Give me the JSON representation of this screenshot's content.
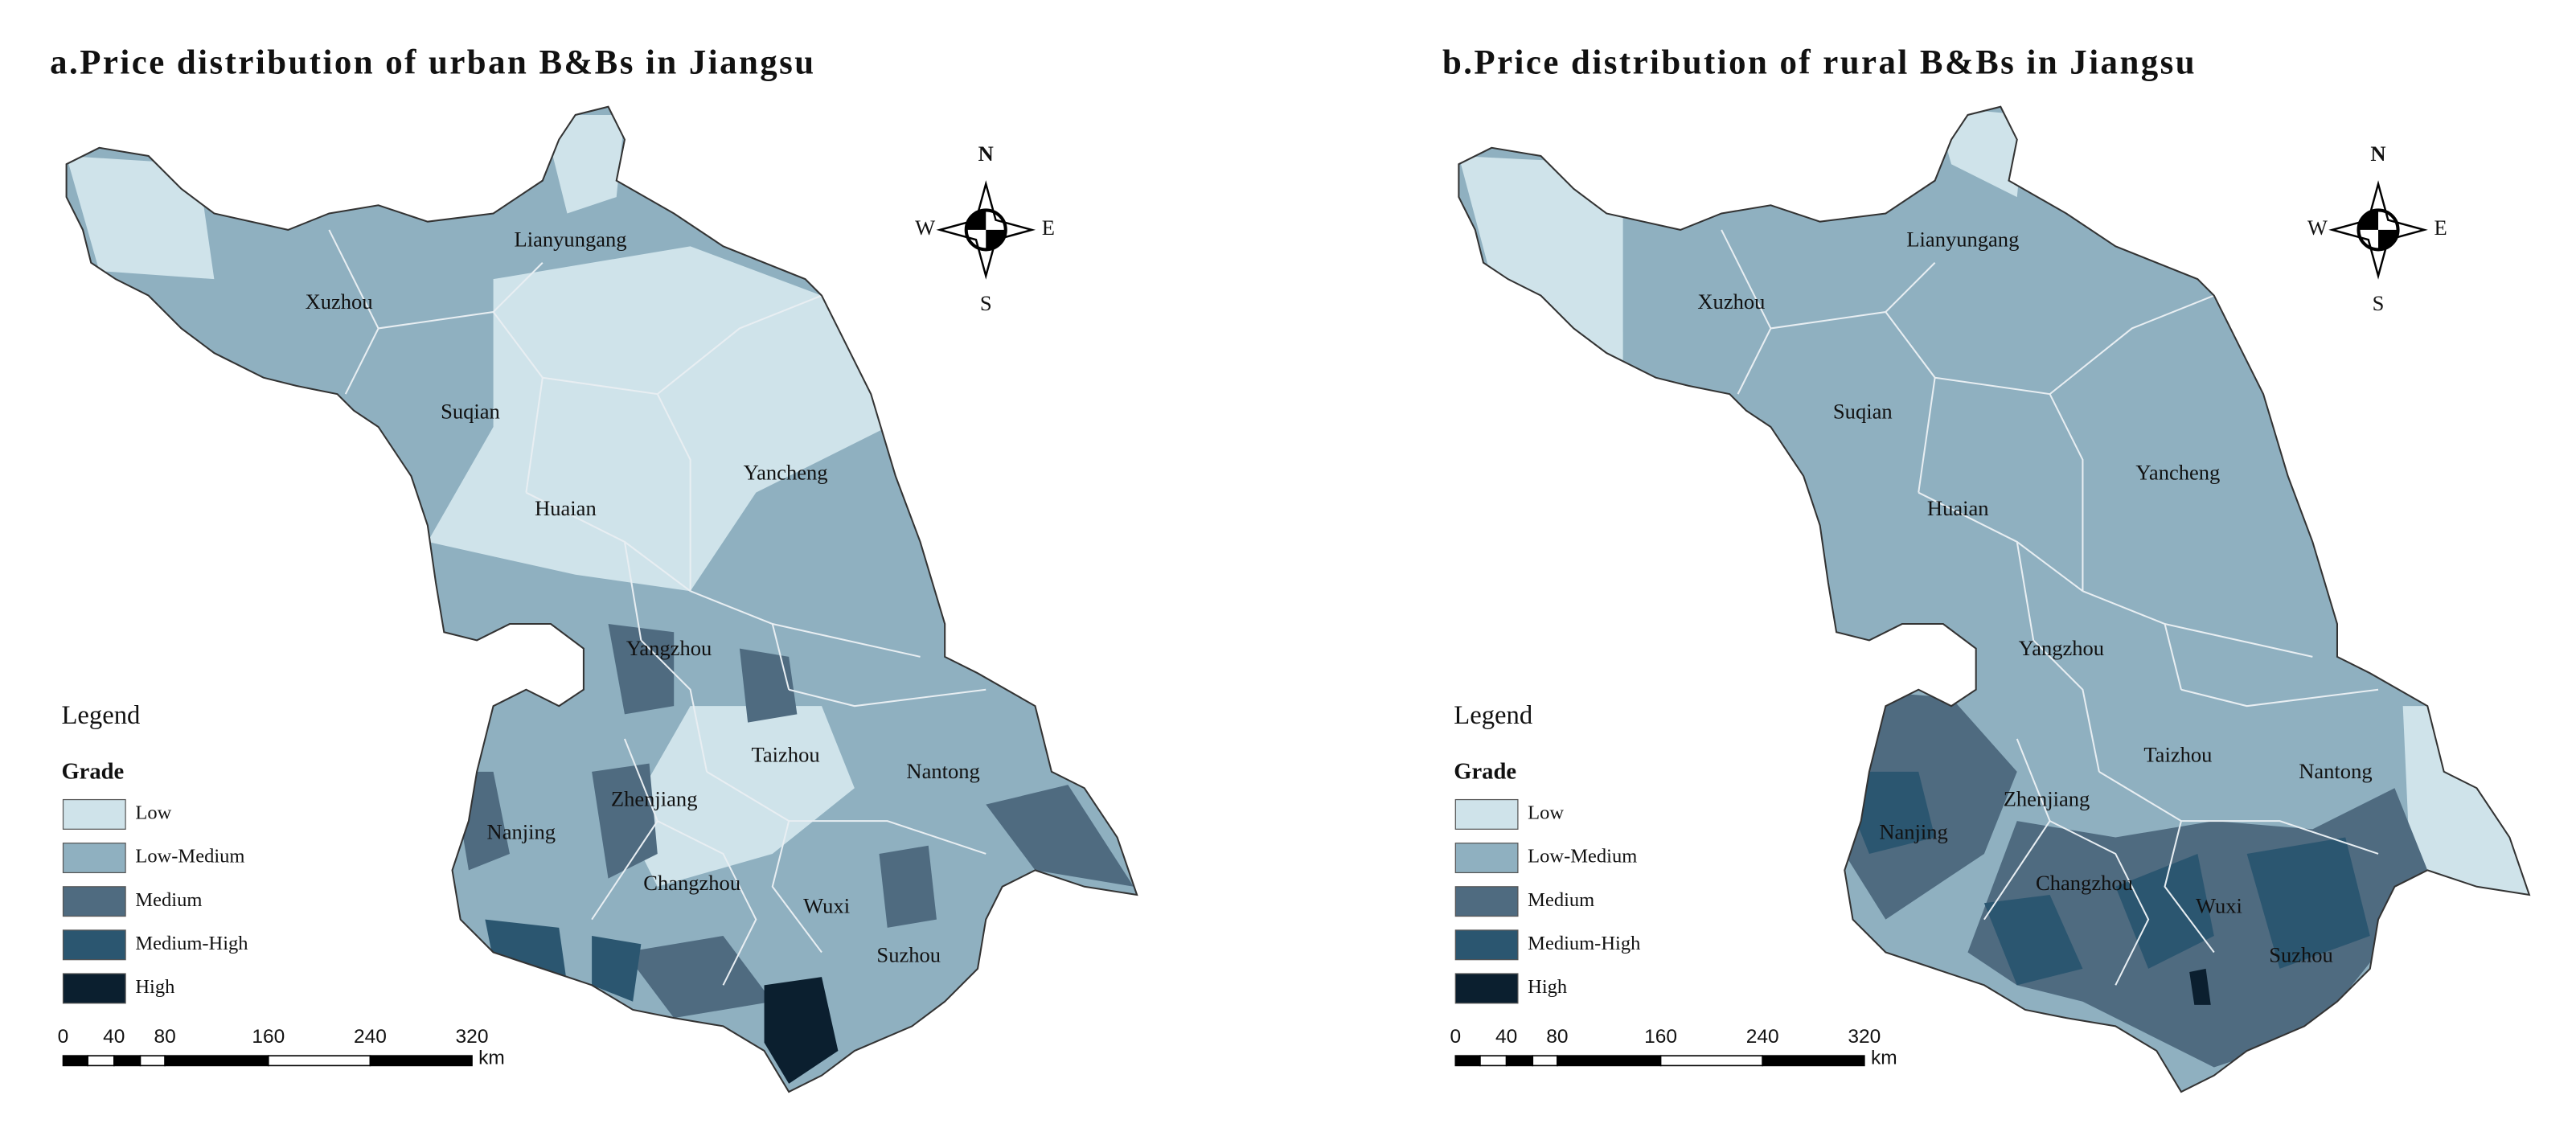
{
  "panels": [
    {
      "title": "a.Price distribution of urban B&Bs in Jiangsu",
      "cities": [
        "Lianyungang",
        "Xuzhou",
        "Suqian",
        "Yancheng",
        "Huaian",
        "Yangzhou",
        "Taizhou",
        "Nantong",
        "Zhenjiang",
        "Nanjing",
        "Changzhou",
        "Wuxi",
        "Suzhou"
      ]
    },
    {
      "title": "b.Price distribution of rural B&Bs in Jiangsu",
      "cities": [
        "Lianyungang",
        "Xuzhou",
        "Suqian",
        "Yancheng",
        "Huaian",
        "Yangzhou",
        "Taizhou",
        "Nantong",
        "Zhenjiang",
        "Nanjing",
        "Changzhou",
        "Wuxi",
        "Suzhou"
      ]
    }
  ],
  "legend": {
    "title": "Legend",
    "heading": "Grade",
    "grades": [
      {
        "label": "Low",
        "color": "#cfe3ea"
      },
      {
        "label": "Low-Medium",
        "color": "#8fb0c0"
      },
      {
        "label": "Medium",
        "color": "#4f6b80"
      },
      {
        "label": "Medium-High",
        "color": "#2b5670"
      },
      {
        "label": "High",
        "color": "#0b1f2f"
      }
    ]
  },
  "compass": {
    "north": "N",
    "east": "E",
    "south": "S",
    "west": "W"
  },
  "scale_bar": {
    "ticks": [
      "0",
      "40",
      "80",
      "160",
      "240",
      "320"
    ],
    "unit": "km"
  }
}
